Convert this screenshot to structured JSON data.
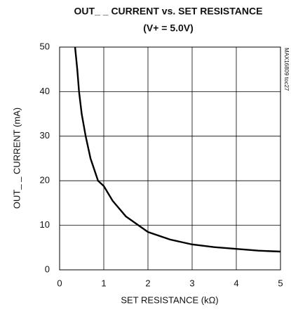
{
  "chart_data": {
    "type": "line",
    "title": "OUT_ _ CURRENT vs. SET RESISTANCE",
    "subtitle": "(V+ = 5.0V)",
    "x_label": "SET RESISTANCE (kΩ)",
    "y_label": "OUT_ _ CURRENT (mA)",
    "annotation": "MAX16809 toc27",
    "x": [
      0.35,
      0.4,
      0.44,
      0.5,
      0.59,
      0.7,
      0.87,
      1,
      1.2,
      1.5,
      2,
      2.5,
      3,
      3.5,
      4,
      4.5,
      5
    ],
    "values": [
      50,
      45,
      40,
      35,
      30,
      25,
      20,
      18.8,
      15.5,
      12,
      8.5,
      6.8,
      5.7,
      5.1,
      4.7,
      4.3,
      4.1
    ],
    "color": "#000000",
    "xlim": [
      0,
      5
    ],
    "xticks": [
      0,
      1,
      2,
      3,
      4,
      5
    ],
    "ylim": [
      0,
      50
    ],
    "yticks": [
      0,
      10,
      20,
      30,
      40,
      50
    ],
    "grid": true
  }
}
